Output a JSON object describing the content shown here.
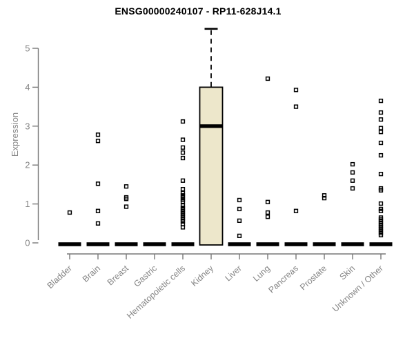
{
  "title": "ENSG00000240107 - RP11-628J14.1",
  "chart_data": {
    "type": "boxplot",
    "title": "ENSG00000240107 - RP11-628J14.1",
    "ylabel": "Expression",
    "xlabel": "",
    "ylim": [
      0,
      5.6
    ],
    "yticks": [
      0,
      1,
      2,
      3,
      4,
      5
    ],
    "grid": false,
    "legend": false,
    "categories": [
      "Bladder",
      "Brain",
      "Breast",
      "Gastric",
      "Hematopoietic cells",
      "Kidney",
      "Liver",
      "Lung",
      "Pancreas",
      "Prostate",
      "Skin",
      "Unknown / Other"
    ],
    "boxes": [
      {
        "q1": 0,
        "median": 0,
        "q3": 0
      },
      {
        "q1": 0,
        "median": 0,
        "q3": 0
      },
      {
        "q1": 0,
        "median": 0,
        "q3": 0
      },
      {
        "q1": 0,
        "median": 0,
        "q3": 0
      },
      {
        "q1": 0,
        "median": 0,
        "q3": 0
      },
      {
        "q1": 0,
        "median": 3.0,
        "q3": 4.0,
        "whisker_high": 5.5
      },
      {
        "q1": 0,
        "median": 0,
        "q3": 0
      },
      {
        "q1": 0,
        "median": 0,
        "q3": 0
      },
      {
        "q1": 0,
        "median": 0,
        "q3": 0
      },
      {
        "q1": 0,
        "median": 0,
        "q3": 0
      },
      {
        "q1": 0,
        "median": 0,
        "q3": 0
      },
      {
        "q1": 0,
        "median": 0,
        "q3": 0
      }
    ],
    "outliers": [
      [
        0.78
      ],
      [
        2.78,
        2.62,
        1.52,
        0.82,
        0.5
      ],
      [
        1.45,
        1.17,
        1.13,
        0.93
      ],
      [],
      [
        3.12,
        2.65,
        2.45,
        2.32,
        2.18,
        1.6,
        1.38,
        1.28,
        1.22,
        1.17,
        1.11,
        1.06,
        0.96,
        0.9,
        0.85,
        0.8,
        0.75,
        0.7,
        0.65,
        0.6,
        0.55,
        0.48,
        0.4
      ],
      [],
      [
        1.1,
        0.87,
        0.57,
        0.18
      ],
      [
        4.22,
        1.05,
        0.78,
        0.67
      ],
      [
        3.93,
        3.5,
        0.82
      ],
      [
        1.22,
        1.15
      ],
      [
        2.02,
        1.81,
        1.6,
        1.4
      ],
      [
        3.65,
        3.35,
        3.17,
        2.95,
        2.85,
        2.57,
        2.25,
        1.77,
        1.4,
        1.35,
        1.01,
        0.87,
        0.82,
        0.65,
        0.6,
        0.55,
        0.5,
        0.45,
        0.4,
        0.35,
        0.3,
        0.25,
        0.2
      ]
    ],
    "colors": {
      "box_fill": "#EDE7CB",
      "box_stroke": "#000000",
      "median": "#000000",
      "outlier": "#000000",
      "axis_line": "#777777",
      "axis_text": "#858585",
      "title_text": "#000000",
      "background": "#ffffff"
    }
  }
}
